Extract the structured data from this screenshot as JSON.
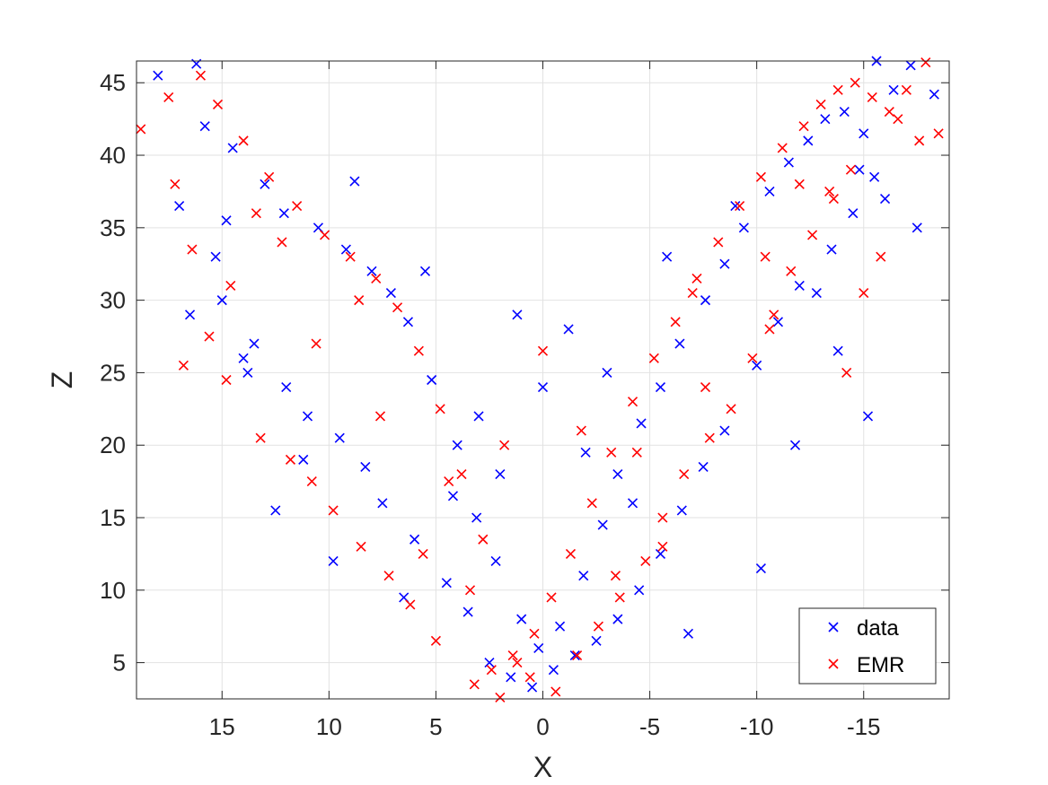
{
  "chart_data": {
    "type": "scatter",
    "title": "",
    "xlabel": "X",
    "ylabel": "Z",
    "xlim": [
      19,
      -19
    ],
    "ylim": [
      2.5,
      46.5
    ],
    "x_reversed": true,
    "grid": true,
    "box": true,
    "legend_placement": "bottom-right",
    "marker": "x",
    "xticks": [
      15,
      10,
      5,
      0,
      -5,
      -10,
      -15
    ],
    "xtick_labels": [
      "15",
      "10",
      "5",
      "0",
      "-5",
      "-10",
      "-15"
    ],
    "yticks": [
      5,
      10,
      15,
      20,
      25,
      30,
      35,
      40,
      45
    ],
    "ytick_labels": [
      "5",
      "10",
      "15",
      "20",
      "25",
      "30",
      "35",
      "40",
      "45"
    ],
    "series": [
      {
        "name": "data",
        "color": "#0000ff",
        "x": [
          18.0,
          16.2,
          15.8,
          14.5,
          13.0,
          12.1,
          10.5,
          9.2,
          8.0,
          7.1,
          6.3,
          5.2,
          4.0,
          3.1,
          2.2,
          1.0,
          0.2,
          -0.8,
          -1.9,
          -2.8,
          -3.5,
          -4.6,
          -5.5,
          -6.4,
          -7.6,
          -8.5,
          -9.4,
          -10.6,
          -11.5,
          -12.4,
          -13.2,
          -14.1,
          -15.0,
          -15.6,
          -16.4,
          -17.2,
          -18.3,
          17.0,
          15.0,
          13.5,
          12.0,
          11.0,
          9.5,
          8.3,
          7.5,
          6.0,
          4.5,
          3.5,
          2.5,
          1.5,
          0.5,
          -0.5,
          -1.5,
          -2.5,
          -3.5,
          -4.5,
          -5.5,
          -6.5,
          -7.5,
          -8.5,
          -10.0,
          -11.0,
          -12.0,
          -13.5,
          -14.5,
          -15.5,
          16.5,
          14.0,
          12.5,
          8.8,
          5.5,
          3.0,
          -3.0,
          -5.8,
          -9.0,
          -12.8,
          -15.2,
          -17.5,
          2.0,
          -2.0,
          1.2,
          -1.2,
          0.0,
          4.2,
          -4.2,
          6.5,
          -6.8,
          9.8,
          -10.2,
          13.8,
          -13.8,
          15.3,
          -16.0,
          11.2,
          -11.8,
          14.8,
          -14.8
        ],
        "y": [
          45.5,
          46.3,
          42.0,
          40.5,
          38.0,
          36.0,
          35.0,
          33.5,
          32.0,
          30.5,
          28.5,
          24.5,
          20.0,
          15.0,
          12.0,
          8.0,
          6.0,
          7.5,
          11.0,
          14.5,
          18.0,
          21.5,
          24.0,
          27.0,
          30.0,
          32.5,
          35.0,
          37.5,
          39.5,
          41.0,
          42.5,
          43.0,
          41.5,
          46.5,
          44.5,
          46.2,
          44.2,
          36.5,
          30.0,
          27.0,
          24.0,
          22.0,
          20.5,
          18.5,
          16.0,
          13.5,
          10.5,
          8.5,
          5.0,
          4.0,
          3.3,
          4.5,
          5.5,
          6.5,
          8.0,
          10.0,
          12.5,
          15.5,
          18.5,
          21.0,
          25.5,
          28.5,
          31.0,
          33.5,
          36.0,
          38.5,
          29.0,
          26.0,
          15.5,
          38.2,
          32.0,
          22.0,
          25.0,
          33.0,
          36.5,
          30.5,
          22.0,
          35.0,
          18.0,
          19.5,
          29.0,
          28.0,
          24.0,
          16.5,
          16.0,
          9.5,
          7.0,
          12.0,
          11.5,
          25.0,
          26.5,
          33.0,
          37.0,
          19.0,
          20.0,
          35.5,
          39.0
        ]
      },
      {
        "name": "EMR",
        "color": "#ff0000",
        "x": [
          18.8,
          17.5,
          16.0,
          15.2,
          14.0,
          12.8,
          11.5,
          10.2,
          9.0,
          7.8,
          6.8,
          5.8,
          4.8,
          3.8,
          2.8,
          2.0,
          1.2,
          0.4,
          -0.4,
          -1.3,
          -2.3,
          -3.2,
          -4.2,
          -5.2,
          -6.2,
          -7.2,
          -8.2,
          -9.2,
          -10.2,
          -11.2,
          -12.2,
          -13.0,
          -13.8,
          -14.6,
          -15.4,
          -16.2,
          -17.0,
          -17.9,
          -18.5,
          16.8,
          14.8,
          13.2,
          11.8,
          10.8,
          9.8,
          8.5,
          7.2,
          6.2,
          5.0,
          3.2,
          2.4,
          1.4,
          0.6,
          -0.6,
          -1.6,
          -2.6,
          -3.6,
          -4.8,
          -5.6,
          -6.6,
          -7.8,
          -8.8,
          -9.8,
          -10.8,
          -11.6,
          -12.6,
          -13.6,
          -14.4,
          -15.8,
          16.4,
          15.6,
          12.2,
          8.6,
          4.4,
          1.8,
          -1.8,
          -4.4,
          -7.0,
          -10.4,
          -12.0,
          -14.2,
          -16.6,
          5.6,
          -5.6,
          3.4,
          -3.4,
          0.0,
          7.6,
          -7.6,
          10.6,
          -10.6,
          13.4,
          -13.4,
          14.6,
          -15.0,
          17.2,
          -17.6
        ],
        "y": [
          41.8,
          44.0,
          45.5,
          43.5,
          41.0,
          38.5,
          36.5,
          34.5,
          33.0,
          31.5,
          29.5,
          26.5,
          22.5,
          18.0,
          13.5,
          2.6,
          5.0,
          7.0,
          9.5,
          12.5,
          16.0,
          19.5,
          23.0,
          26.0,
          28.5,
          31.5,
          34.0,
          36.5,
          38.5,
          40.5,
          42.0,
          43.5,
          44.5,
          45.0,
          44.0,
          43.0,
          44.5,
          46.4,
          41.5,
          25.5,
          24.5,
          20.5,
          19.0,
          17.5,
          15.5,
          13.0,
          11.0,
          9.0,
          6.5,
          3.5,
          4.5,
          5.5,
          4.0,
          3.0,
          5.5,
          7.5,
          9.5,
          12.0,
          15.0,
          18.0,
          20.5,
          22.5,
          26.0,
          29.0,
          32.0,
          34.5,
          37.0,
          39.0,
          33.0,
          33.5,
          27.5,
          34.0,
          30.0,
          17.5,
          20.0,
          21.0,
          19.5,
          30.5,
          33.0,
          38.0,
          25.0,
          42.5,
          12.5,
          13.0,
          10.0,
          11.0,
          26.5,
          22.0,
          24.0,
          27.0,
          28.0,
          36.0,
          37.5,
          31.0,
          30.5,
          38.0,
          41.0
        ]
      }
    ]
  }
}
